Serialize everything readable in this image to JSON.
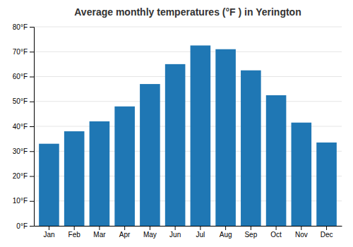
{
  "chart_data": {
    "type": "bar",
    "title": "Average monthly temperatures (°F ) in Yerington",
    "categories": [
      "Jan",
      "Feb",
      "Mar",
      "Apr",
      "May",
      "Jun",
      "Jul",
      "Aug",
      "Sep",
      "Oct",
      "Nov",
      "Dec"
    ],
    "values": [
      33,
      38,
      42,
      48,
      57,
      65,
      72.5,
      71,
      62.5,
      52.5,
      41.5,
      33.5
    ],
    "ylim": [
      0,
      80
    ],
    "yticks": [
      {
        "value": 0,
        "label": "0°F"
      },
      {
        "value": 10,
        "label": "10°F"
      },
      {
        "value": 20,
        "label": "20°F"
      },
      {
        "value": 30,
        "label": "30°F"
      },
      {
        "value": 40,
        "label": "40°F"
      },
      {
        "value": 50,
        "label": "50°F"
      },
      {
        "value": 60,
        "label": "60°F"
      },
      {
        "value": 70,
        "label": "70°F"
      },
      {
        "value": 80,
        "label": "80°F"
      }
    ],
    "grid": true
  }
}
